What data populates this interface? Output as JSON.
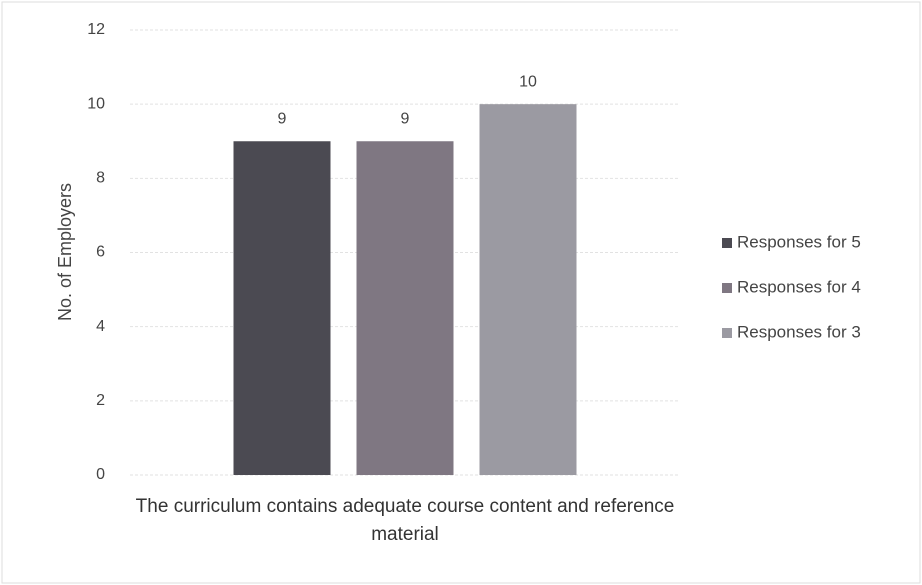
{
  "chart_data": {
    "type": "bar",
    "categories": [
      "The curriculum contains adequate course content and reference material"
    ],
    "y_label": "No. of Employers",
    "series": [
      {
        "name": "Responses for 5",
        "color": "#4b4a52",
        "values": [
          9
        ]
      },
      {
        "name": "Responses for 4",
        "color": "#7f7782",
        "values": [
          9
        ]
      },
      {
        "name": "Responses for 3",
        "color": "#9b9aa2",
        "values": [
          10
        ]
      }
    ],
    "ylim": [
      0,
      12
    ],
    "yticks": [
      0,
      2,
      4,
      6,
      8,
      10,
      12
    ],
    "grid": true,
    "legend": "right"
  }
}
